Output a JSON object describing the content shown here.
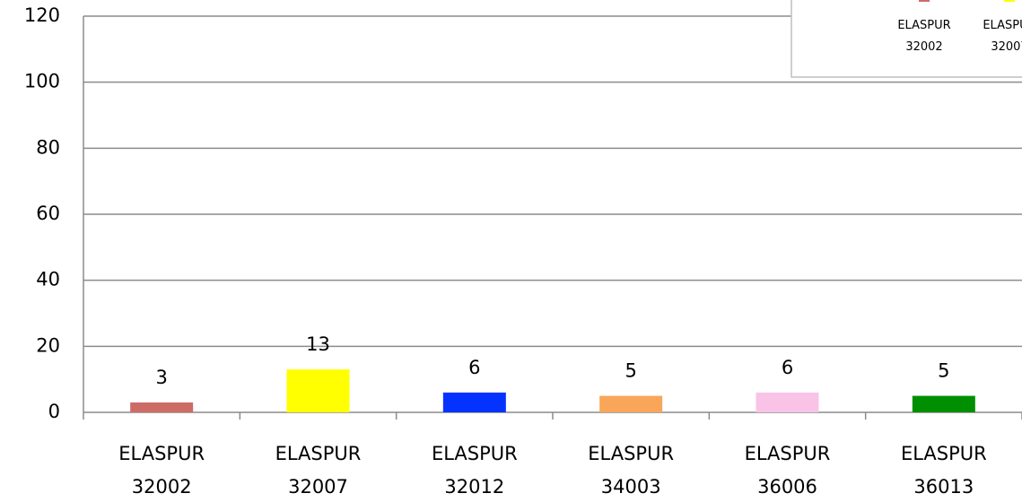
{
  "chart_data": {
    "type": "bar",
    "categories": [
      "ELASPUR 32002",
      "ELASPUR 32007",
      "ELASPUR 32012",
      "ELASPUR 34003",
      "ELASPUR 36006",
      "ELASPUR 36013"
    ],
    "values": [
      3,
      13,
      6,
      5,
      6,
      5
    ],
    "colors": [
      "#cd6b67",
      "#ffff00",
      "#0433ff",
      "#f9a65a",
      "#f9c3e8",
      "#008f00"
    ],
    "ylim": [
      0,
      120
    ],
    "yticks": [
      0,
      20,
      40,
      60,
      80,
      100,
      120
    ],
    "grid": true,
    "legend": "top-right"
  }
}
